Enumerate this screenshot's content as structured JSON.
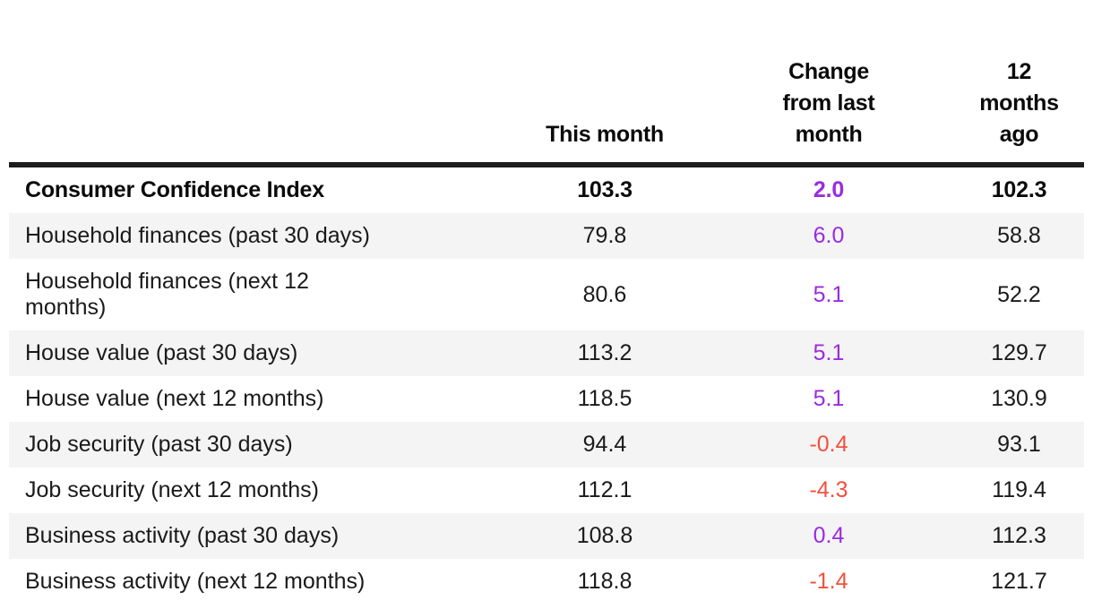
{
  "table": {
    "columns": [
      {
        "label": ""
      },
      {
        "label": "This month"
      },
      {
        "label": "Change from last month"
      },
      {
        "label": "12 months ago"
      }
    ],
    "rows": [
      {
        "label": "Consumer Confidence Index",
        "this_month": "103.3",
        "change": "2.0",
        "twelve_months_ago": "102.3",
        "bold": true
      },
      {
        "label": "Household finances (past 30 days)",
        "this_month": "79.8",
        "change": "6.0",
        "twelve_months_ago": "58.8",
        "bold": false
      },
      {
        "label": "Household finances (next 12 months)",
        "this_month": "80.6",
        "change": "5.1",
        "twelve_months_ago": "52.2",
        "bold": false
      },
      {
        "label": "House value (past 30 days)",
        "this_month": "113.2",
        "change": "5.1",
        "twelve_months_ago": "129.7",
        "bold": false
      },
      {
        "label": "House value (next 12 months)",
        "this_month": "118.5",
        "change": "5.1",
        "twelve_months_ago": "130.9",
        "bold": false
      },
      {
        "label": "Job security (past 30 days)",
        "this_month": "94.4",
        "change": "-0.4",
        "twelve_months_ago": "93.1",
        "bold": false
      },
      {
        "label": "Job security (next 12 months)",
        "this_month": "112.1",
        "change": "-4.3",
        "twelve_months_ago": "119.4",
        "bold": false
      },
      {
        "label": "Business activity (past 30 days)",
        "this_month": "108.8",
        "change": "0.4",
        "twelve_months_ago": "112.3",
        "bold": false
      },
      {
        "label": "Business activity (next 12 months)",
        "this_month": "118.8",
        "change": "-1.4",
        "twelve_months_ago": "121.7",
        "bold": false
      }
    ],
    "colors": {
      "positive_change": "#9a2be0",
      "negative_change": "#f2503c",
      "header_rule": "#1d1d1d",
      "stripe": "#f4f4f4",
      "text": "#1a1a1a"
    }
  }
}
